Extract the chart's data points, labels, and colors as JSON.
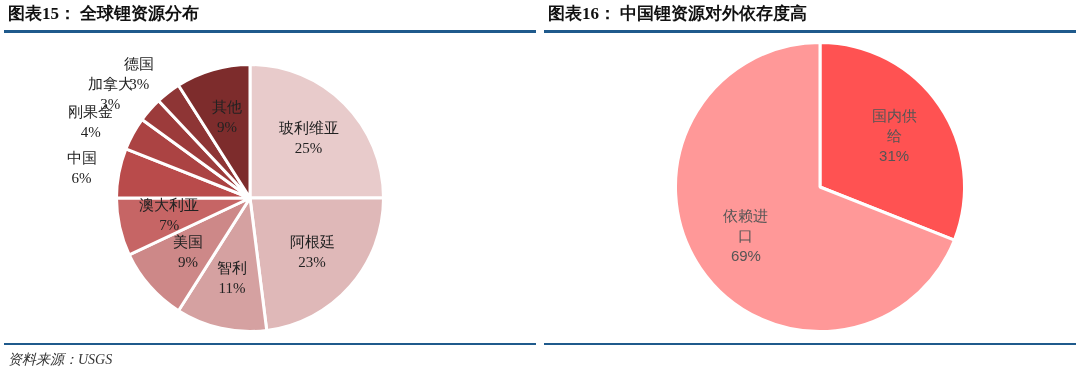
{
  "chart_data": [
    {
      "type": "pie",
      "title": "图表15： 全球锂资源分布",
      "categories": [
        "玻利维亚",
        "阿根廷",
        "智利",
        "美国",
        "澳大利亚",
        "中国",
        "刚果金",
        "加拿大",
        "德国",
        "其他"
      ],
      "values": [
        25,
        23,
        11,
        9,
        7,
        6,
        4,
        3,
        3,
        9
      ],
      "colors": [
        "#e8cbcb",
        "#dfb8b8",
        "#d5a1a1",
        "#cd8888",
        "#c66565",
        "#b94b4b",
        "#ab4343",
        "#9c3b3b",
        "#8e3535",
        "#7d2c2c"
      ],
      "value_labels": [
        "25%",
        "23%",
        "11%",
        "9%",
        "7%",
        "6%",
        "4%",
        "3%",
        "3%",
        "9%"
      ],
      "legend": false,
      "annotations": [
        "资料来源：USGS"
      ]
    },
    {
      "type": "pie",
      "title": "图表16： 中国锂资源对外依存度高",
      "categories": [
        "国内供给",
        "依赖进口"
      ],
      "values": [
        31,
        69
      ],
      "colors": [
        "#ff5252",
        "#ff9898"
      ],
      "value_labels": [
        "31%",
        "69%"
      ],
      "legend": false
    }
  ]
}
